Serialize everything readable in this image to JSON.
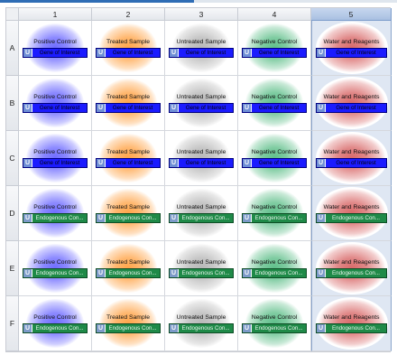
{
  "columns": [
    "1",
    "2",
    "3",
    "4",
    "5"
  ],
  "rows": [
    "A",
    "B",
    "C",
    "D",
    "E",
    "F"
  ],
  "selected_column": "5",
  "badge": "U",
  "samples": [
    "Positive Control",
    "Treated Sample",
    "Untreated Sample",
    "Negative Control",
    "Water and Reagents"
  ],
  "sample_colors": [
    "#6f6cff",
    "#ffa54a",
    "#b8b8b8",
    "#5fbf8a",
    "#d96a6a"
  ],
  "targets": {
    "A": "Gene of Interest",
    "B": "Gene of Interest",
    "C": "Gene of Interest",
    "D": "Endogenous Con...",
    "E": "Endogenous Con...",
    "F": "Endogenous Con..."
  },
  "target_style": {
    "A": "blue",
    "B": "blue",
    "C": "blue",
    "D": "green",
    "E": "green",
    "F": "green"
  },
  "target_colors": {
    "blue": "#1b1bff",
    "green": "#1f8a48"
  }
}
